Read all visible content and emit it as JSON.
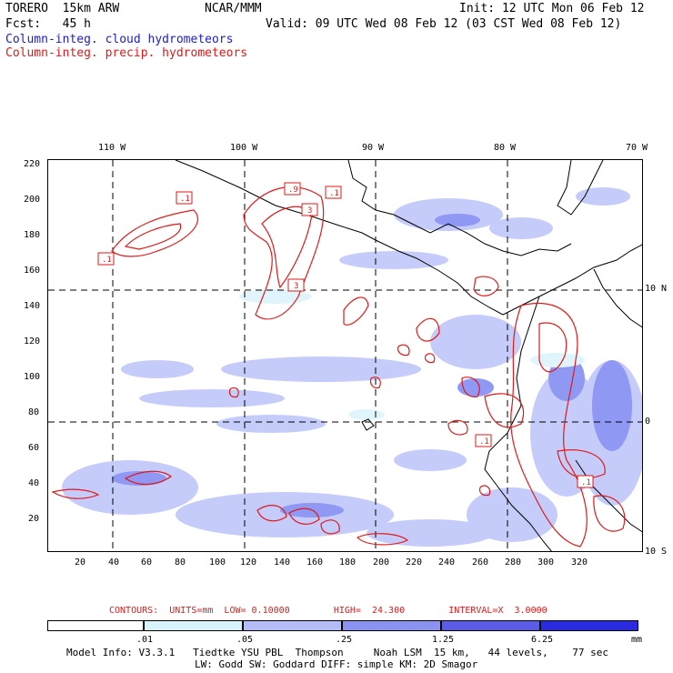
{
  "header": {
    "model": "TORERO  15km ARW",
    "org": "NCAR/MMM",
    "init": "Init: 12 UTC Mon 06 Feb 12",
    "fcst": "Fcst:   45 h",
    "valid": "Valid: 09 UTC Wed 08 Feb 12 (03 CST Wed 08 Feb 12)"
  },
  "legend": {
    "cloud": "Column-integ. cloud hydrometeors",
    "precip": "Column-integ. precip. hydrometeors"
  },
  "axes": {
    "top_lon": [
      "110 W",
      "100 W",
      "90 W",
      "80 W",
      "70 W"
    ],
    "right_lat": [
      "10 N",
      "0",
      "10 S"
    ],
    "left_y": [
      "220",
      "200",
      "180",
      "160",
      "140",
      "120",
      "100",
      "80",
      "60",
      "40",
      "20"
    ],
    "bottom_x": [
      "20",
      "40",
      "60",
      "80",
      "100",
      "120",
      "140",
      "160",
      "180",
      "200",
      "220",
      "240",
      "260",
      "280",
      "300",
      "320"
    ]
  },
  "contour_labels": [
    ".1",
    ".1",
    ".9",
    ".1",
    "3",
    "3",
    ".1",
    ".1"
  ],
  "contours_info": "CONTOURS:  UNITS=mm  LOW= 0.10000        HIGH=  24.300        INTERVAL=X  3.0000",
  "colorbar": {
    "labels": [
      ".01",
      ".05",
      ".25",
      "1.25",
      "6.25"
    ],
    "unit": "mm",
    "colors": [
      "#ffffff",
      "#d7f3fb",
      "#b4bdf8",
      "#8a93f2",
      "#5b5be8",
      "#2a2ae2"
    ]
  },
  "footer": {
    "line1": "Model Info: V3.3.1   Tiedtke YSU PBL  Thompson     Noah LSM  15 km,   44 levels,    77 sec",
    "line2": "LW: Godd SW: Goddard DIFF: simple KM: 2D Smagor"
  }
}
